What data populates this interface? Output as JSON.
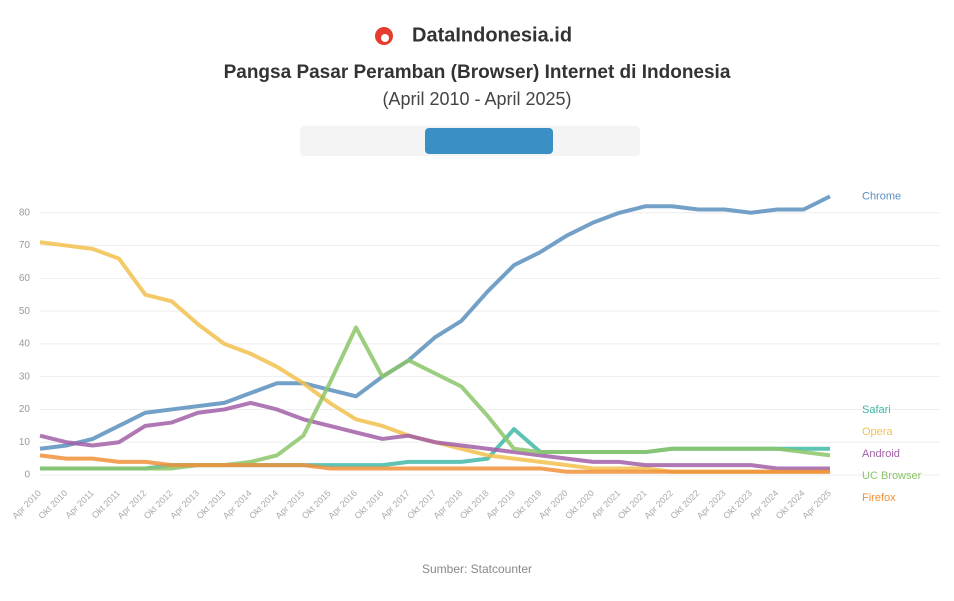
{
  "brand": "DataIndonesia.id",
  "chart_data": {
    "type": "line",
    "title": "Pangsa Pasar Peramban (Browser) Internet di Indonesia",
    "subtitle": "(April 2010 - April 2025)",
    "categories": [
      "Apr 2010",
      "Okt 2010",
      "Apr 2011",
      "Okt 2011",
      "Apr 2012",
      "Okt 2012",
      "Apr 2013",
      "Okt 2013",
      "Apr 2014",
      "Okt 2014",
      "Apr 2015",
      "Okt 2015",
      "Apr 2016",
      "Okt 2016",
      "Apr 2017",
      "Okt 2017",
      "Apr 2018",
      "Okt 2018",
      "Apr 2019",
      "Okt 2019",
      "Apr 2020",
      "Okt 2020",
      "Apr 2021",
      "Okt 2021",
      "Apr 2022",
      "Okt 2022",
      "Apr 2023",
      "Okt 2023",
      "Apr 2024",
      "Okt 2024",
      "Apr 2025"
    ],
    "series": [
      {
        "name": "Chrome",
        "color": "#5b8fbd",
        "values": [
          8,
          9,
          11,
          15,
          19,
          20,
          21,
          22,
          25,
          28,
          28,
          26,
          24,
          30,
          35,
          42,
          47,
          56,
          64,
          68,
          73,
          77,
          80,
          82,
          82,
          81,
          81,
          80,
          81,
          81,
          85
        ]
      },
      {
        "name": "Safari",
        "color": "#3fb8a8",
        "values": [
          2,
          2,
          2,
          2,
          2,
          3,
          3,
          3,
          3,
          3,
          3,
          3,
          3,
          3,
          4,
          4,
          4,
          5,
          14,
          7,
          7,
          7,
          7,
          7,
          8,
          8,
          8,
          8,
          8,
          8,
          8
        ]
      },
      {
        "name": "Opera",
        "color": "#f2c14e",
        "values": [
          71,
          70,
          69,
          66,
          55,
          53,
          46,
          40,
          37,
          33,
          28,
          22,
          17,
          15,
          12,
          10,
          8,
          6,
          5,
          4,
          3,
          2,
          2,
          2,
          1,
          1,
          1,
          1,
          1,
          1,
          1
        ]
      },
      {
        "name": "Android",
        "color": "#a25fa8",
        "values": [
          12,
          10,
          9,
          10,
          15,
          16,
          19,
          20,
          22,
          20,
          17,
          15,
          13,
          11,
          12,
          10,
          9,
          8,
          7,
          6,
          5,
          4,
          4,
          3,
          3,
          3,
          3,
          3,
          2,
          2,
          2
        ]
      },
      {
        "name": "UC Browser",
        "color": "#8cc56a",
        "values": [
          2,
          2,
          2,
          2,
          2,
          2,
          3,
          3,
          4,
          6,
          12,
          28,
          45,
          30,
          35,
          31,
          27,
          18,
          8,
          7,
          7,
          7,
          7,
          7,
          8,
          8,
          8,
          8,
          8,
          7,
          6
        ]
      },
      {
        "name": "Firefox",
        "color": "#f0913a",
        "values": [
          6,
          5,
          5,
          4,
          4,
          3,
          3,
          3,
          3,
          3,
          3,
          2,
          2,
          2,
          2,
          2,
          2,
          2,
          2,
          2,
          1,
          1,
          1,
          1,
          1,
          1,
          1,
          1,
          1,
          1,
          1
        ]
      }
    ],
    "ylim": [
      0,
      90
    ],
    "yticks": [
      0,
      10,
      20,
      30,
      40,
      50,
      60,
      70,
      80
    ],
    "grid": true,
    "source": "Sumber: Statcounter"
  }
}
